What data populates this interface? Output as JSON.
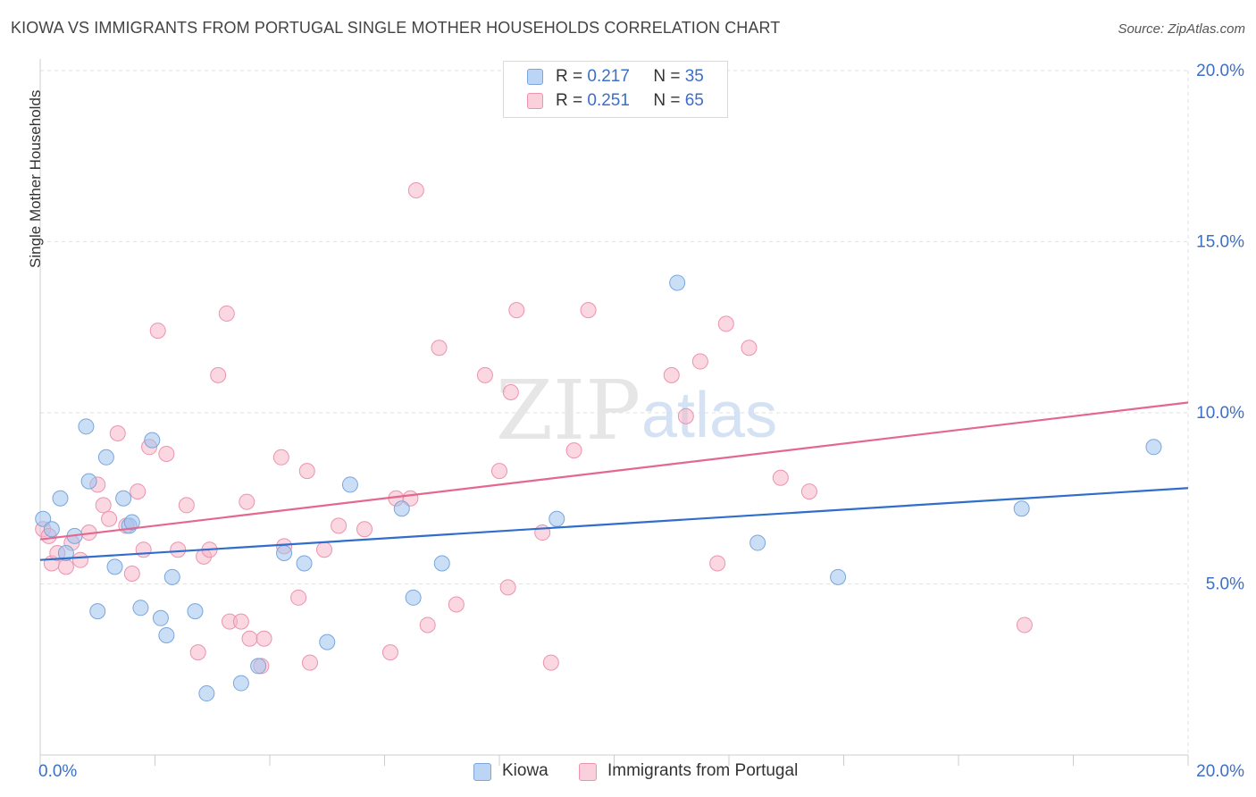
{
  "title": "KIOWA VS IMMIGRANTS FROM PORTUGAL SINGLE MOTHER HOUSEHOLDS CORRELATION CHART",
  "source": "Source: ZipAtlas.com",
  "watermark": {
    "zip": "ZIP",
    "atlas": "atlas"
  },
  "legend_top": [
    {
      "r_label": "R =",
      "r_value": "0.217",
      "n_label": "N =",
      "n_value": "35"
    },
    {
      "r_label": "R =",
      "r_value": "0.251",
      "n_label": "N =",
      "n_value": "65"
    }
  ],
  "legend_bottom": [
    "Kiowa",
    "Immigrants from Portugal"
  ],
  "chart_data": {
    "type": "scatter",
    "title": "KIOWA VS IMMIGRANTS FROM PORTUGAL SINGLE MOTHER HOUSEHOLDS CORRELATION CHART",
    "ylabel": "Single Mother Households",
    "xlabel": "",
    "xlim": [
      0,
      20
    ],
    "ylim": [
      0,
      20
    ],
    "x_ticks": [
      "0.0%",
      "20.0%"
    ],
    "y_ticks": [
      {
        "value": 5,
        "label": "5.0%"
      },
      {
        "value": 10,
        "label": "10.0%"
      },
      {
        "value": 15,
        "label": "15.0%"
      },
      {
        "value": 20,
        "label": "20.0%"
      }
    ],
    "grid": true,
    "legend_position": "top-center",
    "series": [
      {
        "name": "Kiowa",
        "color": "#9ec2ee",
        "stroke": "#7aa6dc",
        "line_color": "#2f6fcb",
        "r": 0.217,
        "n": 35,
        "trend": {
          "x": [
            0,
            20
          ],
          "y": [
            5.7,
            7.8
          ]
        },
        "points": [
          [
            0.05,
            6.9
          ],
          [
            0.2,
            6.6
          ],
          [
            0.35,
            7.5
          ],
          [
            0.45,
            5.9
          ],
          [
            0.6,
            6.4
          ],
          [
            0.8,
            9.6
          ],
          [
            0.85,
            8.0
          ],
          [
            1.0,
            4.2
          ],
          [
            1.15,
            8.7
          ],
          [
            1.3,
            5.5
          ],
          [
            1.45,
            7.5
          ],
          [
            1.55,
            6.7
          ],
          [
            1.6,
            6.8
          ],
          [
            1.75,
            4.3
          ],
          [
            1.95,
            9.2
          ],
          [
            2.1,
            4.0
          ],
          [
            2.2,
            3.5
          ],
          [
            2.3,
            5.2
          ],
          [
            2.7,
            4.2
          ],
          [
            2.9,
            1.8
          ],
          [
            3.5,
            2.1
          ],
          [
            3.8,
            2.6
          ],
          [
            4.25,
            5.9
          ],
          [
            4.6,
            5.6
          ],
          [
            5.0,
            3.3
          ],
          [
            5.4,
            7.9
          ],
          [
            6.3,
            7.2
          ],
          [
            6.5,
            4.6
          ],
          [
            7.0,
            5.6
          ],
          [
            9.0,
            6.9
          ],
          [
            11.1,
            13.8
          ],
          [
            12.5,
            6.2
          ],
          [
            13.9,
            5.2
          ],
          [
            17.1,
            7.2
          ],
          [
            19.4,
            9.0
          ]
        ]
      },
      {
        "name": "Immigrants from Portugal",
        "color": "#f6b6c9",
        "stroke": "#ec93ae",
        "line_color": "#e4678e",
        "r": 0.251,
        "n": 65,
        "trend": {
          "x": [
            0,
            20
          ],
          "y": [
            6.3,
            10.3
          ]
        },
        "points": [
          [
            0.05,
            6.6
          ],
          [
            0.2,
            5.6
          ],
          [
            0.3,
            5.9
          ],
          [
            0.45,
            5.5
          ],
          [
            0.55,
            6.2
          ],
          [
            0.7,
            5.7
          ],
          [
            0.85,
            6.5
          ],
          [
            1.0,
            7.9
          ],
          [
            1.1,
            7.3
          ],
          [
            1.2,
            6.9
          ],
          [
            1.35,
            9.4
          ],
          [
            1.5,
            6.7
          ],
          [
            1.6,
            5.3
          ],
          [
            1.7,
            7.7
          ],
          [
            1.8,
            6.0
          ],
          [
            1.9,
            9.0
          ],
          [
            2.05,
            12.4
          ],
          [
            2.2,
            8.8
          ],
          [
            2.4,
            6.0
          ],
          [
            2.55,
            7.3
          ],
          [
            2.75,
            3.0
          ],
          [
            2.85,
            5.8
          ],
          [
            2.95,
            6.0
          ],
          [
            3.1,
            11.1
          ],
          [
            3.25,
            12.9
          ],
          [
            3.3,
            3.9
          ],
          [
            3.5,
            3.9
          ],
          [
            3.6,
            7.4
          ],
          [
            3.65,
            3.4
          ],
          [
            3.85,
            2.6
          ],
          [
            3.9,
            3.4
          ],
          [
            4.2,
            8.7
          ],
          [
            4.25,
            6.1
          ],
          [
            4.5,
            4.6
          ],
          [
            4.65,
            8.3
          ],
          [
            4.7,
            2.7
          ],
          [
            4.95,
            6.0
          ],
          [
            5.2,
            6.7
          ],
          [
            5.65,
            6.6
          ],
          [
            6.1,
            3.0
          ],
          [
            6.2,
            7.5
          ],
          [
            6.45,
            7.5
          ],
          [
            6.55,
            16.5
          ],
          [
            6.75,
            3.8
          ],
          [
            6.95,
            11.9
          ],
          [
            7.25,
            4.4
          ],
          [
            7.75,
            11.1
          ],
          [
            8.0,
            8.3
          ],
          [
            8.15,
            4.9
          ],
          [
            8.2,
            10.6
          ],
          [
            8.3,
            13.0
          ],
          [
            8.75,
            6.5
          ],
          [
            8.9,
            2.7
          ],
          [
            9.3,
            8.9
          ],
          [
            9.55,
            13.0
          ],
          [
            11.0,
            11.1
          ],
          [
            11.25,
            9.9
          ],
          [
            11.5,
            11.5
          ],
          [
            11.8,
            5.6
          ],
          [
            11.95,
            12.6
          ],
          [
            12.35,
            11.9
          ],
          [
            12.9,
            8.1
          ],
          [
            13.4,
            7.7
          ],
          [
            17.15,
            3.8
          ],
          [
            0.15,
            6.4
          ]
        ]
      }
    ]
  }
}
